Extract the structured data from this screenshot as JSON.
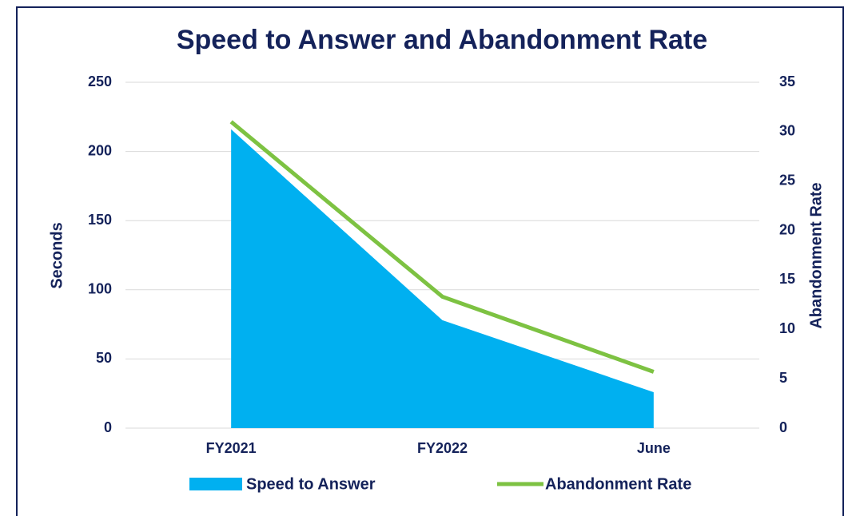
{
  "chart_data": {
    "type": "combo",
    "title": "Speed to Answer and Abandonment Rate",
    "categories": [
      "FY2021",
      "FY2022",
      "June"
    ],
    "series": [
      {
        "name": "Speed to Answer",
        "type": "area",
        "color": "#00b0f0",
        "values": [
          216,
          78,
          26
        ]
      },
      {
        "name": "Abandonment Rate",
        "type": "line",
        "color": "#7dc242",
        "axis": "y2",
        "values": [
          31,
          13.3,
          5.7
        ]
      }
    ],
    "ylabel": "Seconds",
    "y2label": "Abandonment Rate",
    "ylim": [
      0,
      250
    ],
    "yticks": [
      0,
      50,
      100,
      150,
      200,
      250
    ],
    "y2lim": [
      0,
      35
    ],
    "y2ticks": [
      0,
      5,
      10,
      15,
      20,
      25,
      30,
      35
    ],
    "grid": true,
    "legend": "bottom"
  }
}
